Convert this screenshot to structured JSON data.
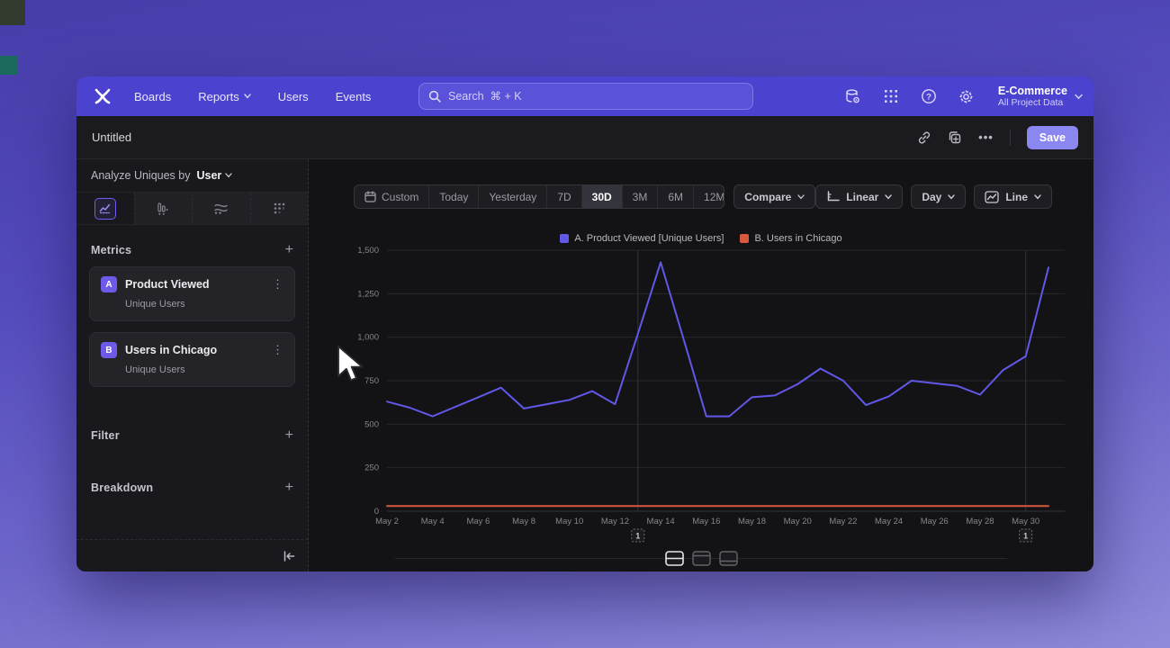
{
  "window": {
    "title": "Untitled",
    "save_label": "Save"
  },
  "navbar": {
    "items": [
      {
        "label": "Boards",
        "chevron": false
      },
      {
        "label": "Reports",
        "chevron": true
      },
      {
        "label": "Users",
        "chevron": false
      },
      {
        "label": "Events",
        "chevron": false
      }
    ],
    "search": {
      "placeholder": "Search  ⌘ + K"
    },
    "project": {
      "name": "E-Commerce",
      "scope": "All Project Data"
    }
  },
  "sidebar": {
    "analyze_prefix": "Analyze Uniques by",
    "analyze_value": "User",
    "metrics_title": "Metrics",
    "metrics": [
      {
        "badge": "A",
        "name": "Product Viewed",
        "sub": "Unique Users"
      },
      {
        "badge": "B",
        "name": "Users in Chicago",
        "sub": "Unique Users"
      }
    ],
    "sections": [
      "Filter",
      "Breakdown"
    ]
  },
  "toolbar": {
    "ranges": [
      "Custom",
      "Today",
      "Yesterday",
      "7D",
      "30D",
      "3M",
      "6M",
      "12M"
    ],
    "active_range": "30D",
    "compare_label": "Compare",
    "view_buttons": [
      {
        "label": "Linear",
        "icon": "axis-scale-icon"
      },
      {
        "label": "Day",
        "icon": ""
      },
      {
        "label": "Line",
        "icon": "line-chart-icon"
      }
    ]
  },
  "chart_data": {
    "type": "line",
    "x": [
      "May 2",
      "May 3",
      "May 4",
      "May 5",
      "May 6",
      "May 7",
      "May 8",
      "May 9",
      "May 10",
      "May 11",
      "May 12",
      "May 13",
      "May 14",
      "May 15",
      "May 16",
      "May 17",
      "May 18",
      "May 19",
      "May 20",
      "May 21",
      "May 22",
      "May 23",
      "May 24",
      "May 25",
      "May 26",
      "May 27",
      "May 28",
      "May 29",
      "May 30",
      "May 31"
    ],
    "xtick_every": 2,
    "ylim": [
      0,
      1500
    ],
    "yticks": [
      0,
      250,
      500,
      750,
      1000,
      1250,
      1500
    ],
    "ytick_labels": [
      "0",
      "250",
      "500",
      "750",
      "1,000",
      "1,250",
      "1,500"
    ],
    "grid": "horizontal",
    "legend_position": "top-center",
    "series": [
      {
        "name": "A. Product Viewed [Unique Users]",
        "color": "#6158e8",
        "values": [
          630,
          595,
          545,
          600,
          655,
          710,
          590,
          615,
          640,
          690,
          615,
          1020,
          1430,
          990,
          545,
          545,
          655,
          665,
          730,
          820,
          750,
          610,
          660,
          750,
          735,
          720,
          670,
          810,
          890,
          1400
        ]
      },
      {
        "name": "B. Users in Chicago",
        "color": "#d9573f",
        "values": [
          30,
          30,
          30,
          30,
          30,
          30,
          30,
          30,
          30,
          30,
          30,
          30,
          30,
          30,
          30,
          30,
          30,
          30,
          30,
          30,
          30,
          30,
          30,
          30,
          30,
          30,
          30,
          30,
          30,
          30
        ]
      }
    ],
    "annotations": [
      {
        "label": "1",
        "x": "May 13"
      },
      {
        "label": "1",
        "x": "May 30"
      }
    ]
  },
  "colors": {
    "navbar": "#4b42cf",
    "accent": "#6e5ae8",
    "save": "#8b87f1",
    "series_a": "#6158e8",
    "series_b": "#d9573f"
  }
}
